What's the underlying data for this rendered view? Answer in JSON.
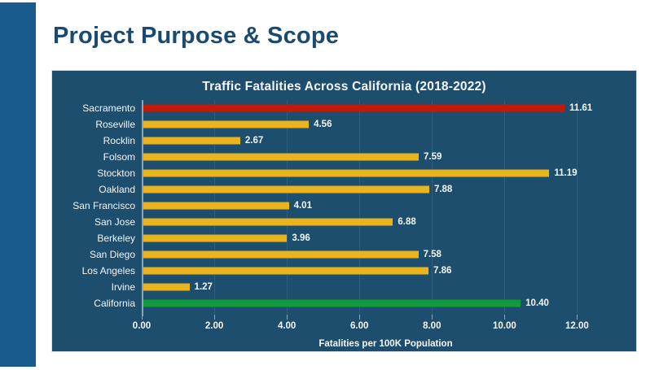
{
  "slide": {
    "title": "Project Purpose & Scope"
  },
  "chart_data": {
    "type": "bar",
    "orientation": "horizontal",
    "title": "Traffic Fatalities Across California (2018-2022)",
    "xlabel": "Fatalities per 100K Population",
    "ylabel": "",
    "categories": [
      "Sacramento",
      "Roseville",
      "Rocklin",
      "Folsom",
      "Stockton",
      "Oakland",
      "San Francisco",
      "San Jose",
      "Berkeley",
      "San Diego",
      "Los Angeles",
      "Irvine",
      "California"
    ],
    "values": [
      11.61,
      4.56,
      2.67,
      7.59,
      11.19,
      7.88,
      4.01,
      6.88,
      3.96,
      7.58,
      7.86,
      1.27,
      10.4
    ],
    "value_labels": [
      "11.61",
      "4.56",
      "2.67",
      "7.59",
      "11.19",
      "7.88",
      "4.01",
      "6.88",
      "3.96",
      "7.58",
      "7.86",
      "1.27",
      "10.40"
    ],
    "bar_colors": [
      "#c21a0a",
      "#eab41f",
      "#eab41f",
      "#eab41f",
      "#eab41f",
      "#eab41f",
      "#eab41f",
      "#eab41f",
      "#eab41f",
      "#eab41f",
      "#eab41f",
      "#eab41f",
      "#119a38"
    ],
    "x_tick_values": [
      0,
      2,
      4,
      6,
      8,
      10,
      12
    ],
    "x_tick_labels": [
      "0.00",
      "2.00",
      "4.00",
      "6.00",
      "8.00",
      "10.00",
      "12.00"
    ],
    "xlim": [
      0,
      13.45
    ],
    "grid": true,
    "legend": false
  },
  "colors": {
    "accent_stripe": "#1a5b8e",
    "panel_bg": "#1d4e6e",
    "gridline": "#2b5f80",
    "title_text": "#1b4a71",
    "chart_text": "#f4f7f9",
    "bar_red": "#c21a0a",
    "bar_yellow": "#eab41f",
    "bar_green": "#119a38"
  }
}
